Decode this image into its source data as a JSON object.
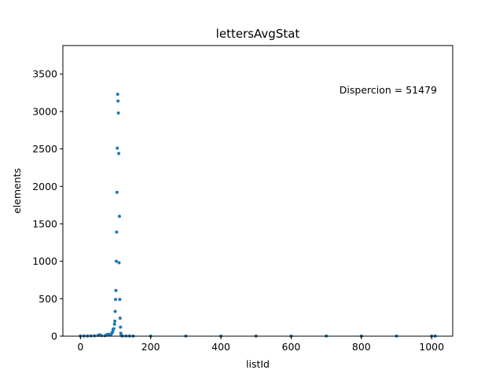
{
  "chart_data": {
    "type": "scatter",
    "title": "lettersAvgStat",
    "xlabel": "listId",
    "ylabel": "elements",
    "xlim": [
      -50,
      1060
    ],
    "ylim": [
      0,
      3880
    ],
    "xticks": [
      0,
      200,
      400,
      600,
      800,
      1000
    ],
    "yticks": [
      0,
      500,
      1000,
      1500,
      2000,
      2500,
      3000,
      3500
    ],
    "annotation": "Dispercion = 51479",
    "color": "#1f77b4",
    "grid": false,
    "points": [
      [
        0,
        2
      ],
      [
        10,
        3
      ],
      [
        20,
        2
      ],
      [
        30,
        4
      ],
      [
        40,
        5
      ],
      [
        50,
        10
      ],
      [
        55,
        18
      ],
      [
        60,
        8
      ],
      [
        70,
        6
      ],
      [
        75,
        20
      ],
      [
        80,
        25
      ],
      [
        85,
        15
      ],
      [
        88,
        30
      ],
      [
        90,
        45
      ],
      [
        92,
        60
      ],
      [
        93,
        90
      ],
      [
        95,
        100
      ],
      [
        97,
        160
      ],
      [
        98,
        200
      ],
      [
        99,
        330
      ],
      [
        100,
        490
      ],
      [
        101,
        610
      ],
      [
        102,
        1000
      ],
      [
        103,
        1390
      ],
      [
        104,
        1920
      ],
      [
        105,
        2510
      ],
      [
        106,
        3230
      ],
      [
        107,
        3140
      ],
      [
        108,
        2980
      ],
      [
        109,
        2440
      ],
      [
        110,
        980
      ],
      [
        111,
        1600
      ],
      [
        112,
        490
      ],
      [
        113,
        240
      ],
      [
        114,
        120
      ],
      [
        115,
        40
      ],
      [
        116,
        10
      ],
      [
        118,
        5
      ],
      [
        120,
        3
      ],
      [
        130,
        2
      ],
      [
        140,
        2
      ],
      [
        150,
        1
      ],
      [
        200,
        1
      ],
      [
        300,
        1
      ],
      [
        400,
        1
      ],
      [
        500,
        1
      ],
      [
        600,
        1
      ],
      [
        700,
        1
      ],
      [
        800,
        1
      ],
      [
        900,
        1
      ],
      [
        1000,
        1
      ],
      [
        1010,
        1
      ]
    ]
  }
}
